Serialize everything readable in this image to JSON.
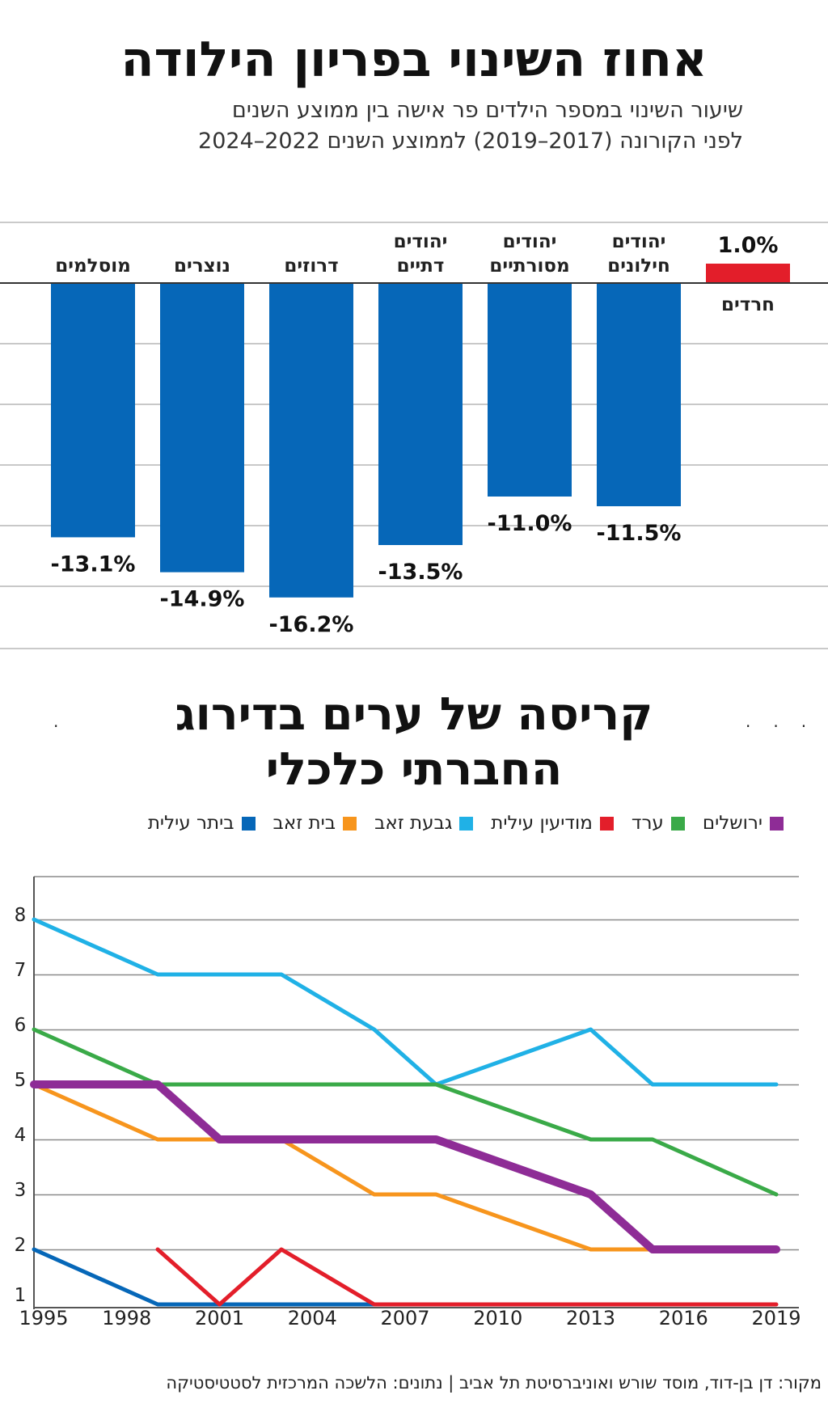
{
  "section1": {
    "title": "אחוז השינוי בפריון הילודה",
    "subtitle_line1": "שיעור השינוי במספר הילדים פר אישה בין ממוצע השנים",
    "subtitle_line2": "לפני הקורונה (2017–2019) לממוצע השנים 2022–2024"
  },
  "section2": {
    "title_line1": "קריסה של ערים בדירוג",
    "title_line2": "החברתי כלכלי"
  },
  "source": "מקור: דן בן-דוד, מוסד שורש ואוניברסיטת תל אביב | נתונים: הלשכה המרכזית לסטטיסטיקה",
  "colors": {
    "bar_negative": "#0667b8",
    "bar_positive": "#e31e2a"
  },
  "chart_data": [
    {
      "type": "bar",
      "categories": [
        [
          "חרדים"
        ],
        [
          "יהודים",
          "חילונים"
        ],
        [
          "יהודים",
          "מסורתיים"
        ],
        [
          "יהודים",
          "דתיים"
        ],
        [
          "דרוזים"
        ],
        [
          "נוצרים"
        ],
        [
          "מוסלמים"
        ]
      ],
      "values": [
        1.0,
        -11.5,
        -11.0,
        -13.5,
        -16.2,
        -14.9,
        -13.1
      ],
      "value_labels": [
        "1.0%",
        "-11.5%",
        "-11.0%",
        "-13.5%",
        "-16.2%",
        "-14.9%",
        "-13.1%"
      ],
      "title": "אחוז השינוי בפריון הילודה",
      "ylim": [
        -18,
        3
      ],
      "grid": true,
      "legend": "none"
    },
    {
      "type": "line",
      "title": "קריסה של ערים בדירוג החברתי כלכלי",
      "x_ticks": [
        "1995",
        "1998",
        "2001",
        "2004",
        "2007",
        "2010",
        "2013",
        "2016",
        "2019"
      ],
      "y_ticks": [
        "1",
        "2",
        "3",
        "4",
        "5",
        "6",
        "7",
        "8"
      ],
      "xlim": [
        1995,
        2019
      ],
      "ylim": [
        1,
        8.5
      ],
      "grid": true,
      "legend": "top-right",
      "series": [
        {
          "name": "ירושלים",
          "color": "#8e2c96",
          "width": 10,
          "x": [
            1995,
            1999,
            2001,
            2004,
            2008,
            2013,
            2015,
            2019
          ],
          "y": [
            5,
            5,
            4,
            4,
            4,
            3,
            2,
            2
          ]
        },
        {
          "name": "ערד",
          "color": "#3aaa48",
          "width": 5,
          "x": [
            1995,
            1999,
            2008,
            2013,
            2015,
            2019
          ],
          "y": [
            6,
            5,
            5,
            4,
            4,
            3
          ]
        },
        {
          "name": "מודיעין עילית",
          "color": "#e31e2a",
          "width": 5,
          "x": [
            1999,
            2001,
            2003,
            2006,
            2019
          ],
          "y": [
            2,
            1,
            2,
            1,
            1
          ]
        },
        {
          "name": "גבעת זאב",
          "color": "#20b1e6",
          "width": 5,
          "x": [
            1995,
            1999,
            2003,
            2006,
            2008,
            2013,
            2015,
            2019
          ],
          "y": [
            8,
            7,
            7,
            6,
            5,
            6,
            5,
            5
          ]
        },
        {
          "name": "בית זאב",
          "color": "#f7951d",
          "width": 5,
          "x": [
            1995,
            1999,
            2003,
            2006,
            2008,
            2013,
            2015
          ],
          "y": [
            5,
            4,
            4,
            3,
            3,
            2,
            2
          ]
        },
        {
          "name": "ביתר עילית",
          "color": "#0667b8",
          "width": 5,
          "x": [
            1995,
            1999,
            2006
          ],
          "y": [
            2,
            1,
            1
          ]
        }
      ]
    }
  ]
}
